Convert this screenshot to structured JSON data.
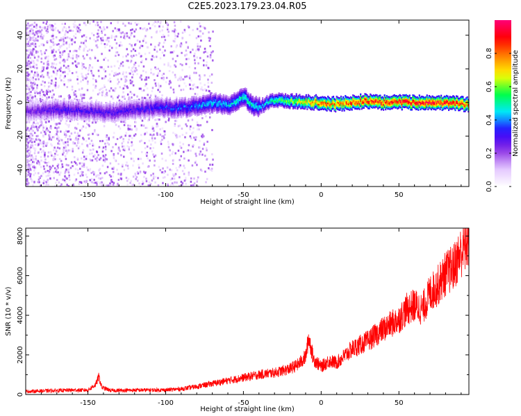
{
  "title": "C2E5.2023.179.23.04.R05",
  "chart_data": [
    {
      "type": "heatmap",
      "xlabel": "Height of straight line (km)",
      "ylabel": "Frequency (Hz)",
      "xlim": [
        -190,
        95
      ],
      "ylim": [
        -50,
        49
      ],
      "xticks": [
        -150,
        -100,
        -50,
        0,
        50
      ],
      "yticks": [
        -40,
        -20,
        0,
        20,
        40
      ],
      "colorbar": {
        "label": "Normalized spectral amplitude",
        "range": [
          0,
          1
        ],
        "ticks": [
          0.0,
          0.2,
          0.4,
          0.6,
          0.8
        ],
        "colors": [
          "#ffffff",
          "#e2c4ff",
          "#8a2be2",
          "#2a00ff",
          "#00e8ff",
          "#00ff44",
          "#ffff00",
          "#ff8800",
          "#ff0000",
          "#ff0077"
        ]
      },
      "ridge": {
        "x": [
          -185,
          -170,
          -150,
          -140,
          -120,
          -100,
          -85,
          -70,
          -60,
          -50,
          -45,
          -40,
          -35,
          -30,
          -25,
          -20,
          -10,
          0,
          10,
          20,
          30,
          40,
          50,
          60,
          70,
          80,
          90
        ],
        "freq": [
          -5,
          -4,
          -5,
          -6,
          -4,
          -3,
          -3,
          0,
          -2,
          4,
          -2,
          -3,
          0,
          1,
          1,
          1,
          0,
          0,
          -1,
          0,
          1,
          0,
          0,
          0,
          0,
          0,
          -1
        ],
        "amplitude": [
          0.25,
          0.3,
          0.3,
          0.3,
          0.3,
          0.35,
          0.38,
          0.45,
          0.45,
          0.5,
          0.48,
          0.45,
          0.5,
          0.55,
          0.6,
          0.65,
          0.75,
          0.85,
          0.85,
          0.9,
          0.92,
          0.93,
          0.95,
          0.95,
          0.95,
          0.95,
          0.9
        ]
      }
    },
    {
      "type": "line",
      "xlabel": "Height of straight line (km)",
      "ylabel": "SNR (10 * v/v)",
      "xlim": [
        -190,
        95
      ],
      "ylim": [
        0,
        8400
      ],
      "xticks": [
        -150,
        -100,
        -50,
        0,
        50
      ],
      "yticks": [
        0,
        2000,
        4000,
        6000,
        8000
      ],
      "series": [
        {
          "color": "#ff0000",
          "x": [
            -190,
            -180,
            -170,
            -160,
            -150,
            -145,
            -143,
            -141,
            -135,
            -120,
            -100,
            -90,
            -80,
            -70,
            -60,
            -50,
            -40,
            -30,
            -20,
            -15,
            -10,
            -8,
            -5,
            0,
            5,
            10,
            20,
            30,
            40,
            50,
            55,
            60,
            65,
            70,
            75,
            80,
            85,
            90,
            95
          ],
          "y": [
            150,
            180,
            200,
            220,
            220,
            500,
            900,
            350,
            200,
            220,
            230,
            280,
            400,
            550,
            700,
            850,
            1000,
            1100,
            1300,
            1500,
            1900,
            2900,
            1800,
            1400,
            1700,
            1600,
            2300,
            2700,
            3300,
            3800,
            4300,
            4500,
            4300,
            5100,
            5500,
            6100,
            6400,
            7200,
            7800
          ]
        }
      ]
    }
  ]
}
